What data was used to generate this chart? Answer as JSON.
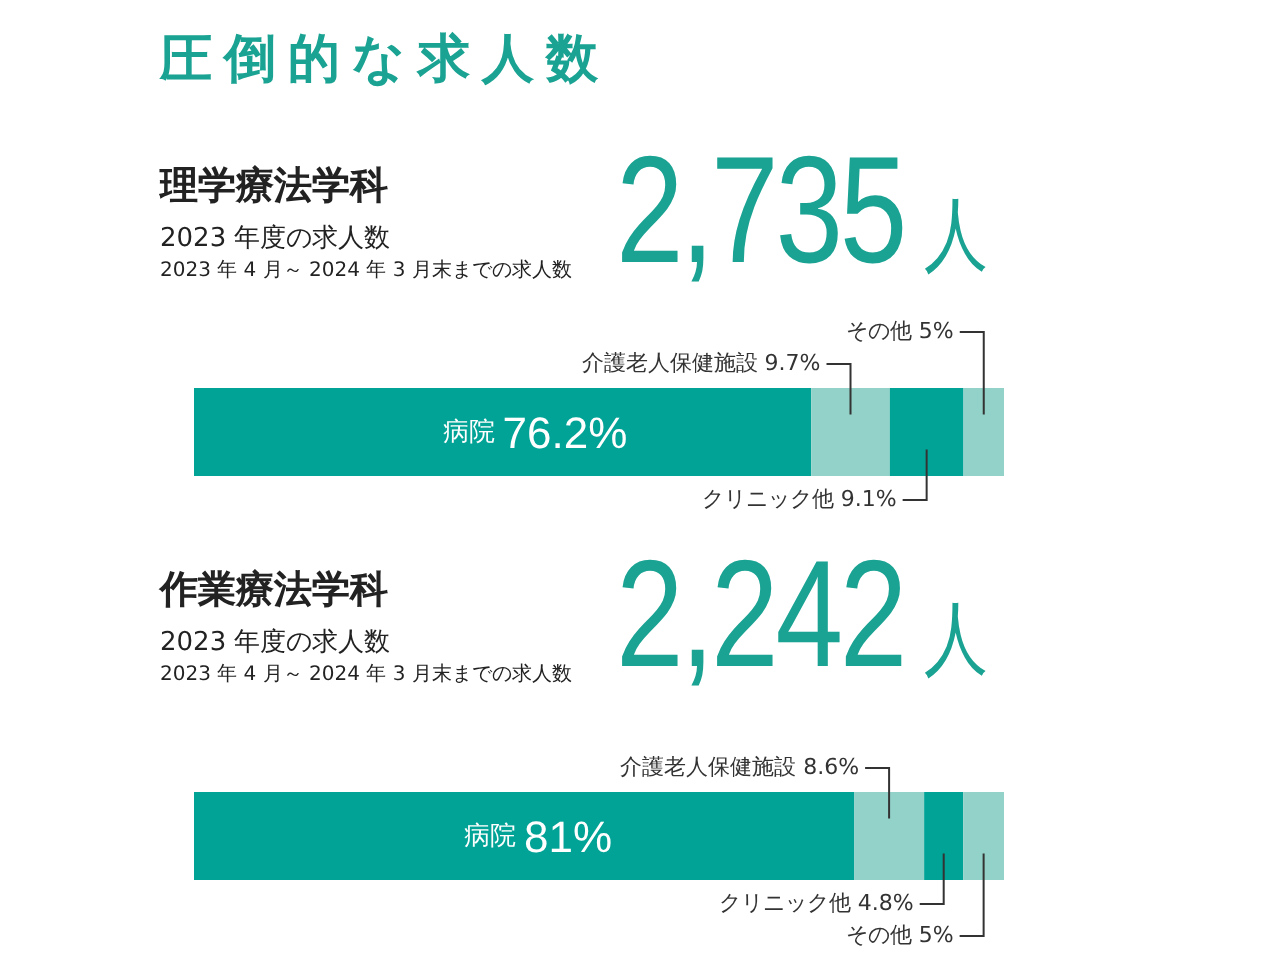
{
  "chart_data": [
    {
      "type": "other",
      "title": "圧倒的な求人数"
    },
    {
      "type": "bar",
      "orientation": "horizontal",
      "stacked": true,
      "title": "理学療法学科",
      "subtitle": "2023 年度の求人数",
      "annotations": [
        "2023 年 4 月～ 2024 年 3 月末までの求人数",
        "2,735人"
      ],
      "categories": [
        null
      ],
      "series": [
        {
          "name": "病院",
          "color": "#00a396",
          "values": [
            76.2
          ],
          "value_labels": [
            "76.2%"
          ]
        },
        {
          "name": "介護老人保健施設",
          "color": "#93d2c9",
          "values": [
            9.7
          ],
          "value_labels": [
            "9.7%"
          ]
        },
        {
          "name": "クリニック他",
          "color": "#00a396",
          "values": [
            9.1
          ],
          "value_labels": [
            "9.1%"
          ]
        },
        {
          "name": "その他",
          "color": "#93d2c9",
          "values": [
            5
          ],
          "value_labels": [
            "5%"
          ]
        }
      ]
    },
    {
      "type": "bar",
      "orientation": "horizontal",
      "stacked": true,
      "title": "作業療法学科",
      "subtitle": "2023 年度の求人数",
      "annotations": [
        "2023 年 4 月～ 2024 年 3 月末までの求人数",
        "2,242人"
      ],
      "categories": [
        null
      ],
      "series": [
        {
          "name": "病院",
          "color": "#00a396",
          "values": [
            81
          ],
          "value_labels": [
            "81%"
          ]
        },
        {
          "name": "介護老人保健施設",
          "color": "#93d2c9",
          "values": [
            8.6
          ],
          "value_labels": [
            "8.6%"
          ]
        },
        {
          "name": "クリニック他",
          "color": "#00a396",
          "values": [
            4.8
          ],
          "value_labels": [
            "4.8%"
          ]
        },
        {
          "name": "その他",
          "color": "#93d2c9",
          "values": [
            5
          ],
          "value_labels": [
            "5%"
          ]
        }
      ]
    }
  ]
}
